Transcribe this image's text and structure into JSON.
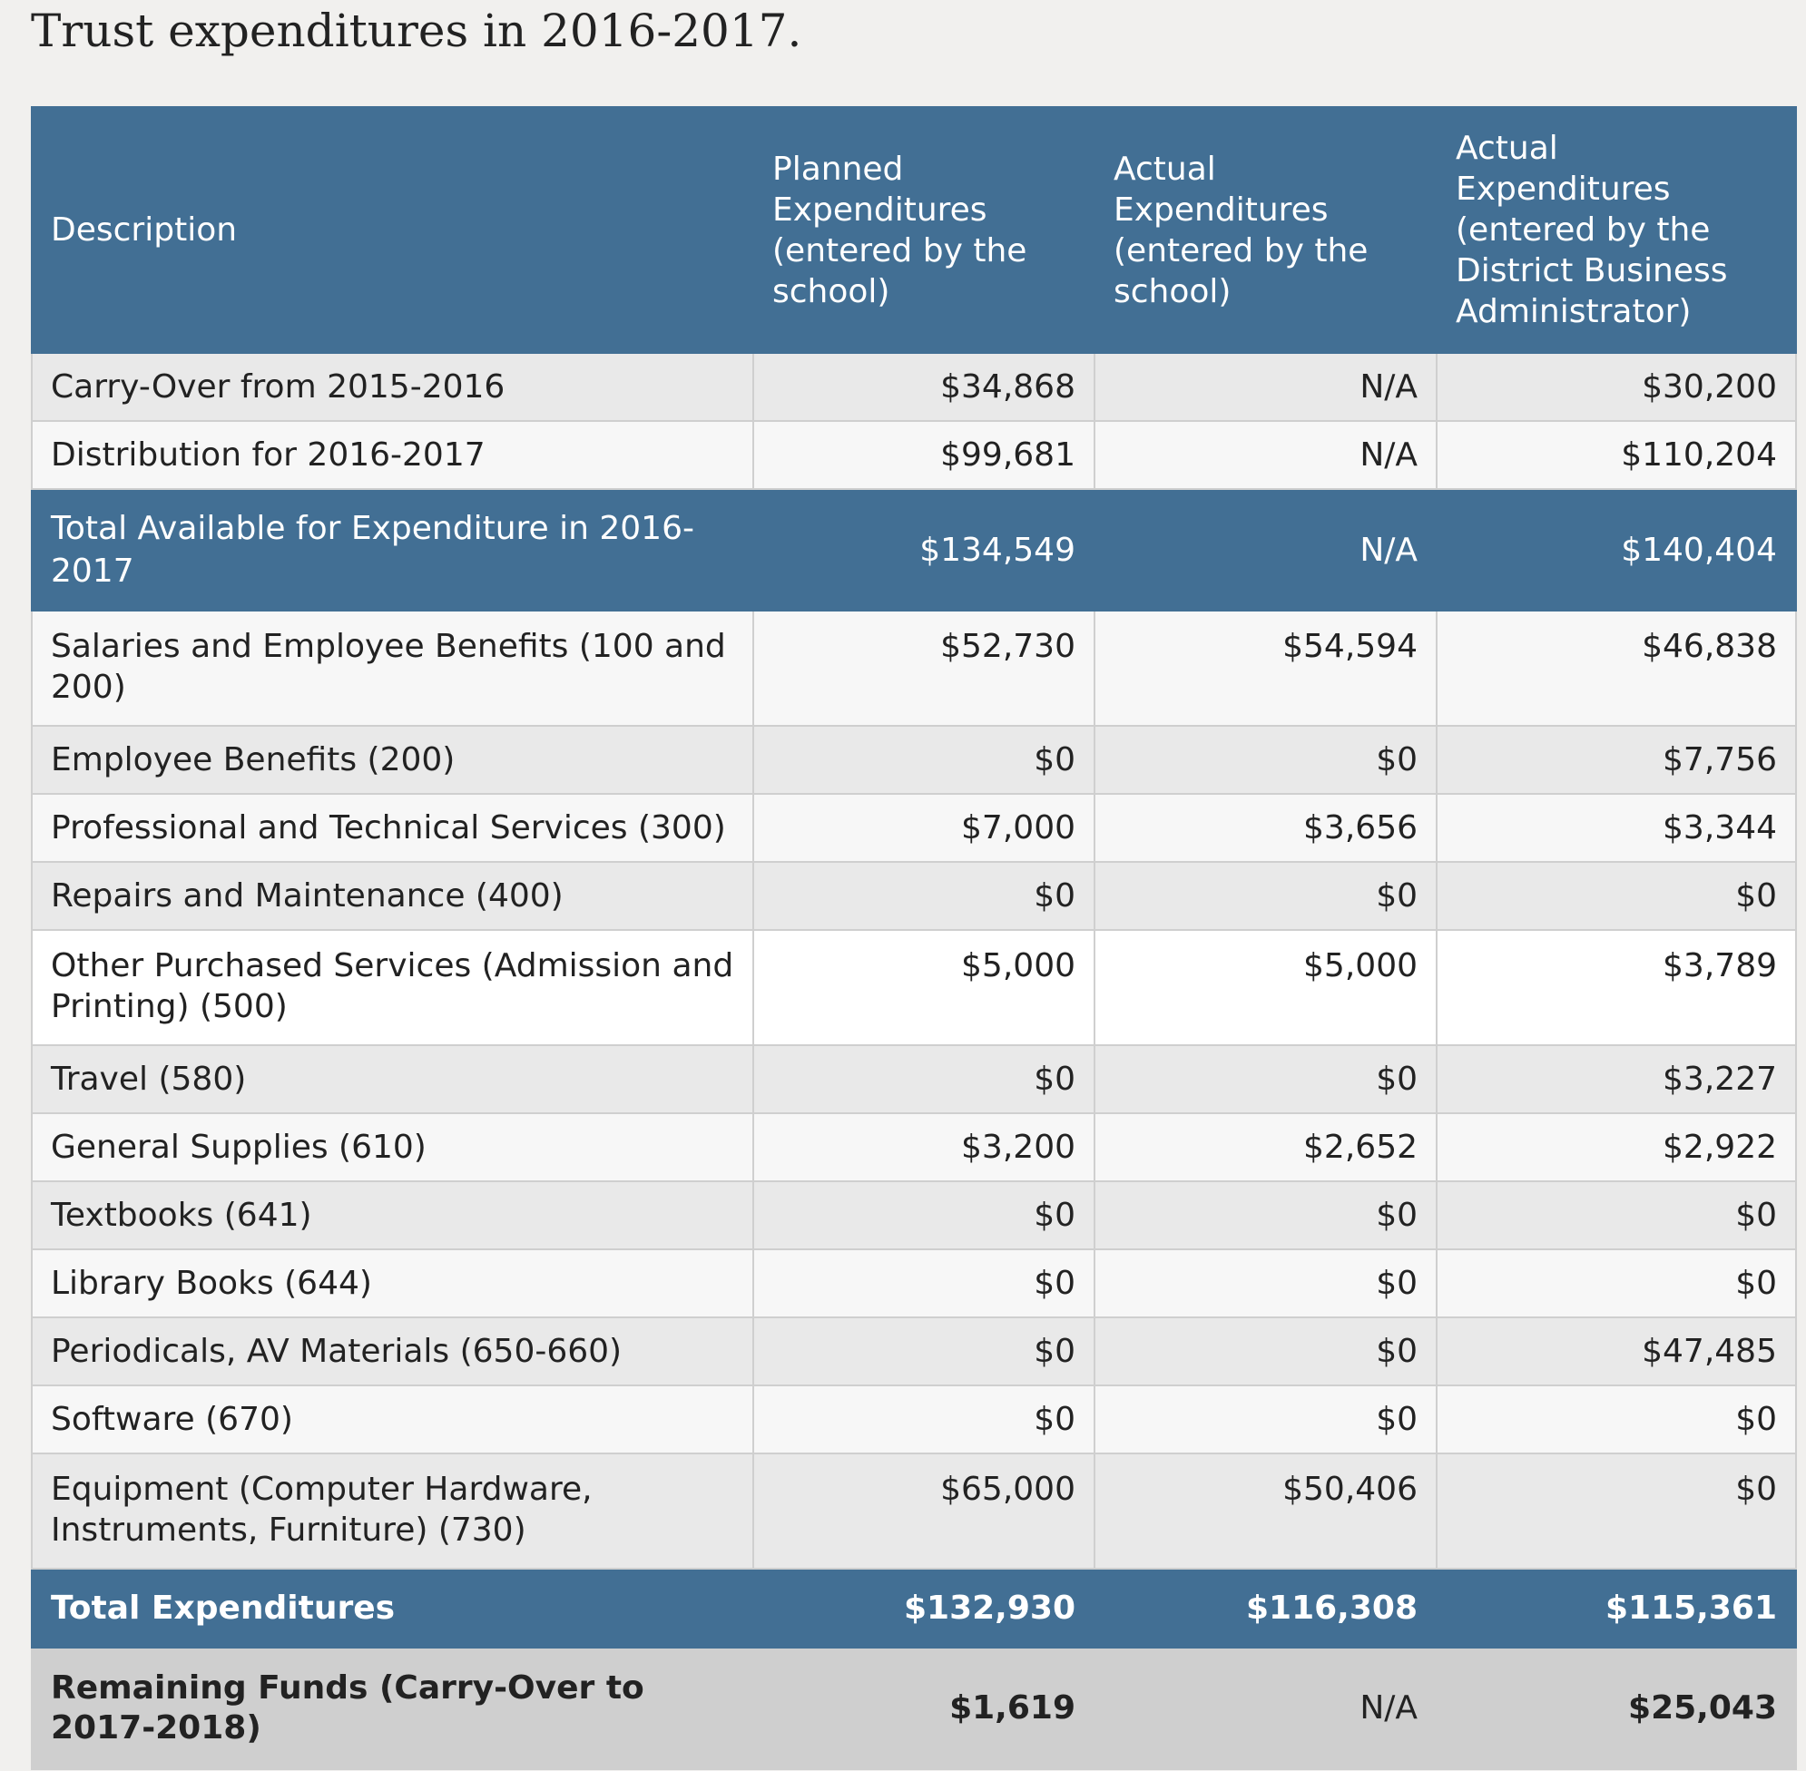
{
  "title": "Trust expenditures in 2016-2017.",
  "headers": {
    "description": "Description",
    "planned": "Planned Expenditures (entered by the school)",
    "actual": "Actual Expenditures (entered by the school)",
    "district": "Actual Expenditures (entered by the District Business Administrator)"
  },
  "rows": [
    {
      "description": "Carry-Over from 2015-2016",
      "planned": "$34,868",
      "actual": "N/A",
      "district": "$30,200"
    },
    {
      "description": "Distribution for 2016-2017",
      "planned": "$99,681",
      "actual": "N/A",
      "district": "$110,204"
    },
    {
      "description": "Total Available for Expenditure in 2016-2017",
      "planned": "$134,549",
      "actual": "N/A",
      "district": "$140,404"
    },
    {
      "description": "Salaries and Employee Benefits (100 and 200)",
      "planned": "$52,730",
      "actual": "$54,594",
      "district": "$46,838"
    },
    {
      "description": "Employee Benefits (200)",
      "planned": "$0",
      "actual": "$0",
      "district": "$7,756"
    },
    {
      "description": "Professional and Technical Services (300)",
      "planned": "$7,000",
      "actual": "$3,656",
      "district": "$3,344"
    },
    {
      "description": "Repairs and Maintenance (400)",
      "planned": "$0",
      "actual": "$0",
      "district": "$0"
    },
    {
      "description": "Other Purchased Services (Admission and Printing) (500)",
      "planned": "$5,000",
      "actual": "$5,000",
      "district": "$3,789"
    },
    {
      "description": "Travel (580)",
      "planned": "$0",
      "actual": "$0",
      "district": "$3,227"
    },
    {
      "description": "General Supplies (610)",
      "planned": "$3,200",
      "actual": "$2,652",
      "district": "$2,922"
    },
    {
      "description": "Textbooks (641)",
      "planned": "$0",
      "actual": "$0",
      "district": "$0"
    },
    {
      "description": "Library Books (644)",
      "planned": "$0",
      "actual": "$0",
      "district": "$0"
    },
    {
      "description": "Periodicals, AV Materials (650-660)",
      "planned": "$0",
      "actual": "$0",
      "district": "$47,485"
    },
    {
      "description": "Software (670)",
      "planned": "$0",
      "actual": "$0",
      "district": "$0"
    },
    {
      "description": "Equipment (Computer Hardware, Instruments, Furniture) (730)",
      "planned": "$65,000",
      "actual": "$50,406",
      "district": "$0"
    },
    {
      "description": "Total Expenditures",
      "planned": "$132,930",
      "actual": "$116,308",
      "district": "$115,361"
    },
    {
      "description": "Remaining Funds (Carry-Over to 2017-2018)",
      "planned": "$1,619",
      "actual": "N/A",
      "district": "$25,043"
    }
  ]
}
